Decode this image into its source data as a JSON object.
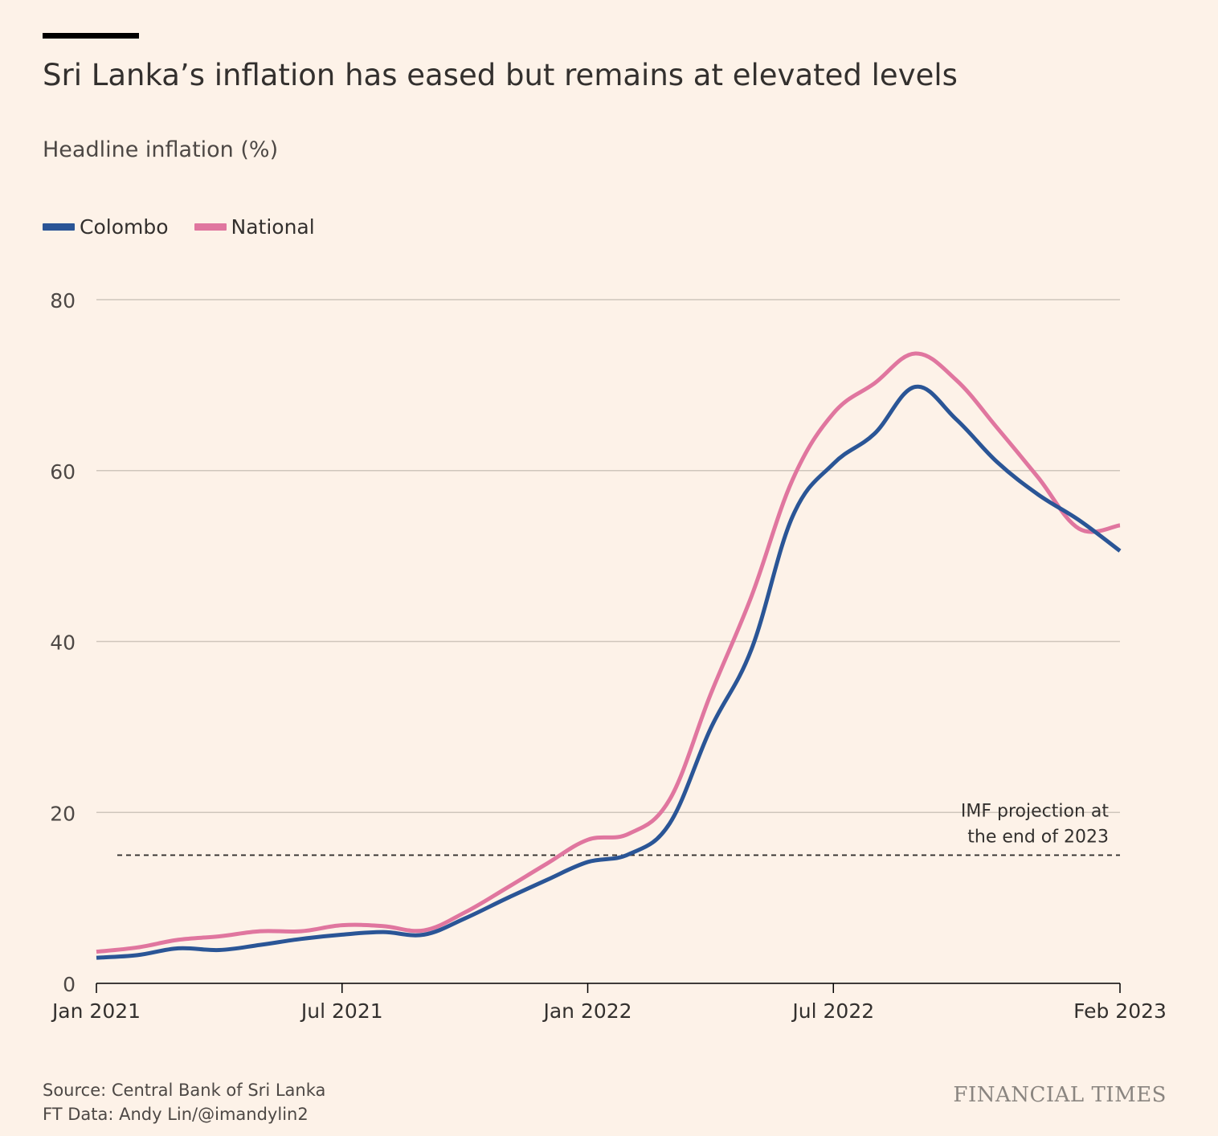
{
  "header": {
    "title": "Sri Lanka’s inflation has eased but remains at elevated levels",
    "subtitle": "Headline inflation (%)"
  },
  "footer": {
    "source": "Source: Central Bank of Sri Lanka",
    "credit": "FT Data: Andy Lin/@imandylin2",
    "brand": "FINANCIAL TIMES"
  },
  "chart_data": {
    "type": "line",
    "ylim": [
      0,
      80
    ],
    "yticks": [
      0,
      20,
      40,
      60,
      80
    ],
    "grid": true,
    "legend_position": "top-left",
    "x_labels": [
      {
        "label": "Jan 2021",
        "value": "2021-01"
      },
      {
        "label": "Jul 2021",
        "value": "2021-07"
      },
      {
        "label": "Jan 2022",
        "value": "2022-01"
      },
      {
        "label": "Jul 2022",
        "value": "2022-07"
      },
      {
        "label": "Feb 2023",
        "value": "2023-02"
      }
    ],
    "x": [
      "2021-01",
      "2021-02",
      "2021-03",
      "2021-04",
      "2021-05",
      "2021-06",
      "2021-07",
      "2021-08",
      "2021-09",
      "2021-10",
      "2021-11",
      "2021-12",
      "2022-01",
      "2022-02",
      "2022-03",
      "2022-04",
      "2022-05",
      "2022-06",
      "2022-07",
      "2022-08",
      "2022-09",
      "2022-10",
      "2022-11",
      "2022-12",
      "2023-01",
      "2023-02"
    ],
    "series": [
      {
        "name": "Colombo",
        "color": "#2a5596",
        "values": [
          3.0,
          3.3,
          4.1,
          3.9,
          4.5,
          5.2,
          5.7,
          6.0,
          5.7,
          7.6,
          9.9,
          12.1,
          14.2,
          15.1,
          18.7,
          29.8,
          39.1,
          54.6,
          60.8,
          64.3,
          69.8,
          66.0,
          61.0,
          57.2,
          54.2,
          50.6
        ]
      },
      {
        "name": "National",
        "color": "#e0769f",
        "values": [
          3.7,
          4.2,
          5.1,
          5.5,
          6.1,
          6.1,
          6.8,
          6.7,
          6.2,
          8.3,
          11.1,
          14.0,
          16.8,
          17.5,
          21.5,
          33.8,
          45.3,
          58.9,
          66.7,
          70.2,
          73.7,
          70.6,
          65.0,
          59.2,
          53.2,
          53.6
        ]
      }
    ],
    "reference_line": {
      "value": 15,
      "label_line1": "IMF projection at",
      "label_line2": "the end of 2023"
    }
  }
}
